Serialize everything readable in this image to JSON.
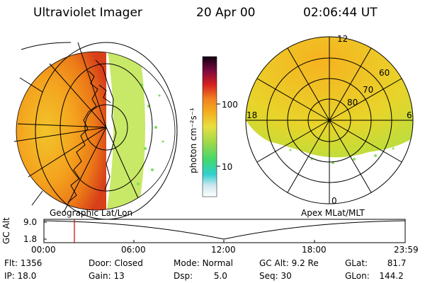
{
  "header": {
    "title": "Ultraviolet Imager",
    "date": "20 Apr 00",
    "time": "02:06:44 UT"
  },
  "colorbar": {
    "unit_label": "photon cm⁻²s⁻¹",
    "ticks": [
      "100",
      "10"
    ]
  },
  "left_panel": {
    "caption": "Geographic Lat/Lon"
  },
  "right_panel": {
    "caption": "Apex MLat/MLT",
    "mlt_labels": {
      "top": "12",
      "left": "18",
      "right": "6",
      "bottom": "0"
    },
    "mlat_labels": [
      "60",
      "70",
      "80"
    ]
  },
  "timeline": {
    "ylabel": "GC Alt",
    "y_ticks": [
      "9.0",
      "1.8"
    ],
    "x_ticks": [
      "00:00",
      "06:00",
      "12:00",
      "18:00",
      "23:59"
    ],
    "marker_color": "#cc0000"
  },
  "info": {
    "flt": {
      "label": "Flt:",
      "value": "1356"
    },
    "ip": {
      "label": "IP:",
      "value": "18.0"
    },
    "door": {
      "label": "Door:",
      "value": "Closed"
    },
    "gain": {
      "label": "Gain:",
      "value": "13"
    },
    "mode": {
      "label": "Mode:",
      "value": "Normal"
    },
    "dsp": {
      "label": "Dsp:",
      "value": "5.0"
    },
    "gcalt": {
      "label": "GC Alt:",
      "value": "9.2 Re"
    },
    "seq": {
      "label": "Seq:",
      "value": "30"
    },
    "glat": {
      "label": "GLat:",
      "value": "81.7"
    },
    "glon": {
      "label": "GLon:",
      "value": "144.2"
    }
  }
}
